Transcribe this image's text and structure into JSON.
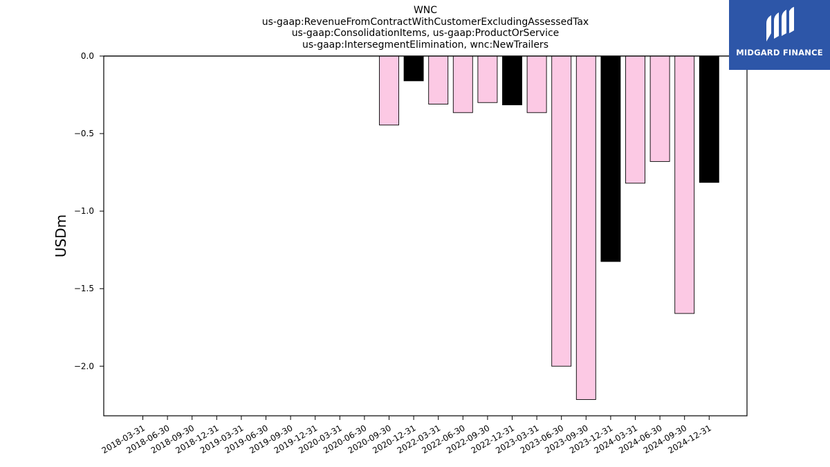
{
  "chart_data": {
    "type": "bar",
    "title_lines": [
      "WNC",
      "us-gaap:RevenueFromContractWithCustomerExcludingAssessedTax",
      "us-gaap:ConsolidationItems, us-gaap:ProductOrService",
      "us-gaap:IntersegmentElimination, wnc:NewTrailers"
    ],
    "ylabel": "USDm",
    "xlabel": "",
    "ylim": [
      -2.32,
      0.0
    ],
    "yticks": [
      0.0,
      -0.5,
      -1.0,
      -1.5,
      -2.0
    ],
    "ytick_labels": [
      "0.0",
      "−0.5",
      "−1.0",
      "−1.5",
      "−2.0"
    ],
    "grid": false,
    "categories": [
      "2018-03-31",
      "2018-06-30",
      "2018-09-30",
      "2018-12-31",
      "2019-03-31",
      "2019-06-30",
      "2019-09-30",
      "2019-12-31",
      "2020-03-31",
      "2020-06-30",
      "2020-09-30",
      "2020-12-31",
      "2022-03-31",
      "2022-06-30",
      "2022-09-30",
      "2022-12-31",
      "2023-03-31",
      "2023-06-30",
      "2023-09-30",
      "2023-12-31",
      "2024-03-31",
      "2024-06-30",
      "2024-09-30",
      "2024-12-31"
    ],
    "values": [
      0,
      0,
      0,
      0,
      0,
      0,
      0,
      0,
      0,
      0,
      -0.445,
      -0.16,
      -0.31,
      -0.365,
      -0.3,
      -0.315,
      -0.365,
      -2.0,
      -2.215,
      -1.325,
      -0.82,
      -0.68,
      -1.66,
      -0.815
    ],
    "bar_colors": [
      "#fcc9e4",
      "#fcc9e4",
      "#fcc9e4",
      "#000000",
      "#fcc9e4",
      "#fcc9e4",
      "#fcc9e4",
      "#000000",
      "#fcc9e4",
      "#fcc9e4",
      "#fcc9e4",
      "#000000",
      "#fcc9e4",
      "#fcc9e4",
      "#fcc9e4",
      "#000000",
      "#fcc9e4",
      "#fcc9e4",
      "#fcc9e4",
      "#000000",
      "#fcc9e4",
      "#fcc9e4",
      "#fcc9e4",
      "#000000"
    ]
  },
  "logo": {
    "text": "MIDGARD FINANCE",
    "background": "#2d56a8"
  }
}
